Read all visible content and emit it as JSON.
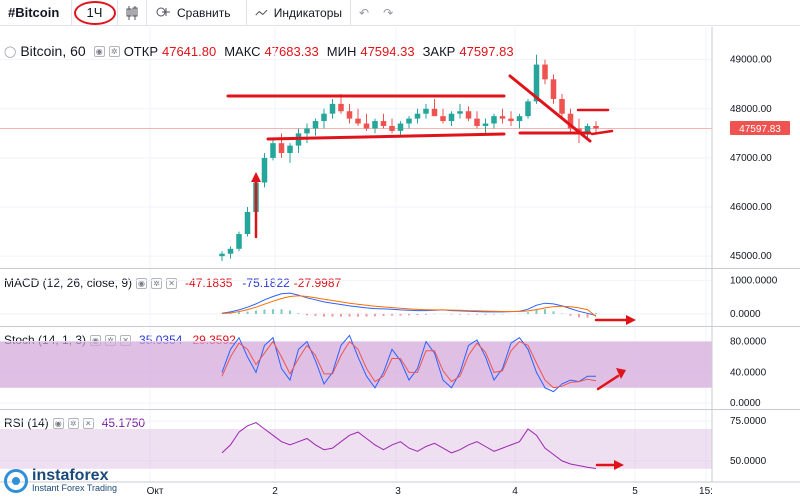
{
  "toolbar": {
    "symbol": "#Bitcoin",
    "interval": "1Ч",
    "compare": "Сравнить",
    "indicators": "Индикаторы"
  },
  "main": {
    "title": "Bitcoin, 60",
    "open_label": "ОТКР",
    "open": "47641.80",
    "high_label": "МАКС",
    "high": "47683.33",
    "low_label": "МИН",
    "low": "47594.33",
    "close_label": "ЗАКР",
    "close": "47597.83",
    "price_tag": "47597.83",
    "y_ticks": [
      "49000.00",
      "48000.00",
      "47000.00",
      "46000.00",
      "45000.00"
    ]
  },
  "macd": {
    "name": "MACD (12, 26, close, 9)",
    "v1": "-47.1835",
    "v2": "-75.1822",
    "v3": "-27.9987",
    "y_ticks": [
      "1000.0000",
      "0.0000"
    ]
  },
  "stoch": {
    "name": "Stoch (14, 1, 3)",
    "v1": "35.0354",
    "v2": "29.3592",
    "y_ticks": [
      "80.0000",
      "40.0000",
      "0.0000"
    ]
  },
  "rsi": {
    "name": "RSI (14)",
    "v1": "45.1750",
    "y_ticks": [
      "75.0000",
      "50.0000"
    ]
  },
  "x_ticks": [
    "Окт",
    "2",
    "3",
    "4",
    "5",
    "15:"
  ],
  "watermark": {
    "brand": "instaforex",
    "sub": "Instant Forex Trading"
  },
  "colors": {
    "up": "#26a69a",
    "down": "#ef5350",
    "annotation": "#e0131b",
    "macd": "#2962ff",
    "signal": "#ff6d00",
    "stoch_k": "#2962ff",
    "stoch_d": "#ef5350",
    "rsi": "#9c27b0",
    "band": "#d1a5d8"
  },
  "chart_data": {
    "type": "candlestick",
    "price_axis": [
      44800,
      49400
    ],
    "candles": [
      [
        45000,
        45100,
        44900,
        45050
      ],
      [
        45050,
        45200,
        44950,
        45150
      ],
      [
        45150,
        45500,
        45100,
        45450
      ],
      [
        45450,
        46000,
        45400,
        45900
      ],
      [
        45900,
        46600,
        45850,
        46500
      ],
      [
        46500,
        47100,
        46400,
        47000
      ],
      [
        47000,
        47400,
        46950,
        47300
      ],
      [
        47300,
        47500,
        47000,
        47100
      ],
      [
        47100,
        47300,
        46900,
        47250
      ],
      [
        47250,
        47600,
        47100,
        47500
      ],
      [
        47500,
        47700,
        47300,
        47600
      ],
      [
        47600,
        47800,
        47450,
        47750
      ],
      [
        47750,
        48000,
        47600,
        47900
      ],
      [
        47900,
        48200,
        47800,
        48100
      ],
      [
        48100,
        48300,
        47900,
        47950
      ],
      [
        47950,
        48100,
        47700,
        47800
      ],
      [
        47800,
        48000,
        47650,
        47700
      ],
      [
        47700,
        47900,
        47550,
        47600
      ],
      [
        47600,
        47800,
        47500,
        47750
      ],
      [
        47750,
        47900,
        47600,
        47650
      ],
      [
        47650,
        47800,
        47500,
        47550
      ],
      [
        47550,
        47750,
        47450,
        47700
      ],
      [
        47700,
        47850,
        47600,
        47800
      ],
      [
        47800,
        48000,
        47700,
        47900
      ],
      [
        47900,
        48100,
        47800,
        48000
      ],
      [
        48000,
        48200,
        47850,
        47850
      ],
      [
        47850,
        48000,
        47700,
        47750
      ],
      [
        47750,
        47950,
        47650,
        47900
      ],
      [
        47900,
        48100,
        47800,
        47950
      ],
      [
        47950,
        48050,
        47750,
        47800
      ],
      [
        47800,
        47950,
        47600,
        47650
      ],
      [
        47650,
        47800,
        47500,
        47700
      ],
      [
        47700,
        47900,
        47600,
        47850
      ],
      [
        47850,
        48000,
        47700,
        47800
      ],
      [
        47800,
        47950,
        47650,
        47750
      ],
      [
        47750,
        47900,
        47600,
        47850
      ],
      [
        47850,
        48200,
        47800,
        48150
      ],
      [
        48150,
        49100,
        48100,
        48900
      ],
      [
        48900,
        49000,
        48500,
        48600
      ],
      [
        48600,
        48700,
        48100,
        48200
      ],
      [
        48200,
        48300,
        47800,
        47900
      ],
      [
        47900,
        48000,
        47500,
        47600
      ],
      [
        47600,
        47800,
        47300,
        47500
      ],
      [
        47500,
        47700,
        47400,
        47650
      ],
      [
        47650,
        47750,
        47500,
        47600
      ]
    ],
    "macd_axis": [
      -300,
      1250
    ],
    "macd_line": [
      20,
      60,
      120,
      200,
      300,
      420,
      520,
      600,
      620,
      560,
      480,
      420,
      360,
      320,
      280,
      240,
      210,
      180,
      160,
      150,
      140,
      120,
      110,
      100,
      100,
      110,
      120,
      100,
      90,
      80,
      70,
      60,
      60,
      60,
      70,
      80,
      140,
      260,
      320,
      300,
      240,
      160,
      80,
      20,
      -47
    ],
    "signal_line": [
      10,
      30,
      70,
      130,
      200,
      290,
      380,
      460,
      520,
      540,
      520,
      480,
      440,
      400,
      360,
      320,
      290,
      260,
      230,
      210,
      190,
      170,
      150,
      135,
      125,
      120,
      120,
      115,
      110,
      100,
      92,
      84,
      78,
      72,
      72,
      74,
      90,
      130,
      180,
      220,
      230,
      215,
      180,
      130,
      -75
    ],
    "stoch_axis": [
      -5,
      95
    ],
    "stoch_k": [
      40,
      70,
      85,
      60,
      40,
      75,
      85,
      45,
      30,
      70,
      80,
      55,
      25,
      40,
      75,
      88,
      60,
      35,
      20,
      40,
      70,
      55,
      30,
      45,
      80,
      65,
      30,
      20,
      40,
      75,
      82,
      60,
      30,
      45,
      78,
      85,
      70,
      40,
      20,
      15,
      25,
      30,
      28,
      35,
      35
    ],
    "stoch_d": [
      35,
      60,
      78,
      70,
      50,
      65,
      80,
      60,
      38,
      58,
      75,
      62,
      38,
      38,
      62,
      80,
      70,
      45,
      28,
      35,
      58,
      58,
      40,
      40,
      68,
      68,
      42,
      28,
      35,
      62,
      78,
      66,
      40,
      42,
      68,
      80,
      75,
      52,
      30,
      20,
      22,
      27,
      28,
      31,
      29
    ],
    "stoch_band": [
      20,
      80
    ],
    "rsi_axis": [
      38,
      80
    ],
    "rsi_line": [
      55,
      60,
      68,
      72,
      74,
      70,
      66,
      62,
      60,
      62,
      64,
      60,
      57,
      58,
      62,
      66,
      68,
      64,
      60,
      57,
      60,
      62,
      58,
      56,
      59,
      61,
      58,
      55,
      57,
      60,
      62,
      59,
      56,
      58,
      60,
      62,
      70,
      66,
      58,
      54,
      50,
      48,
      47,
      46,
      45.2
    ],
    "rsi_band": [
      45,
      70
    ]
  }
}
